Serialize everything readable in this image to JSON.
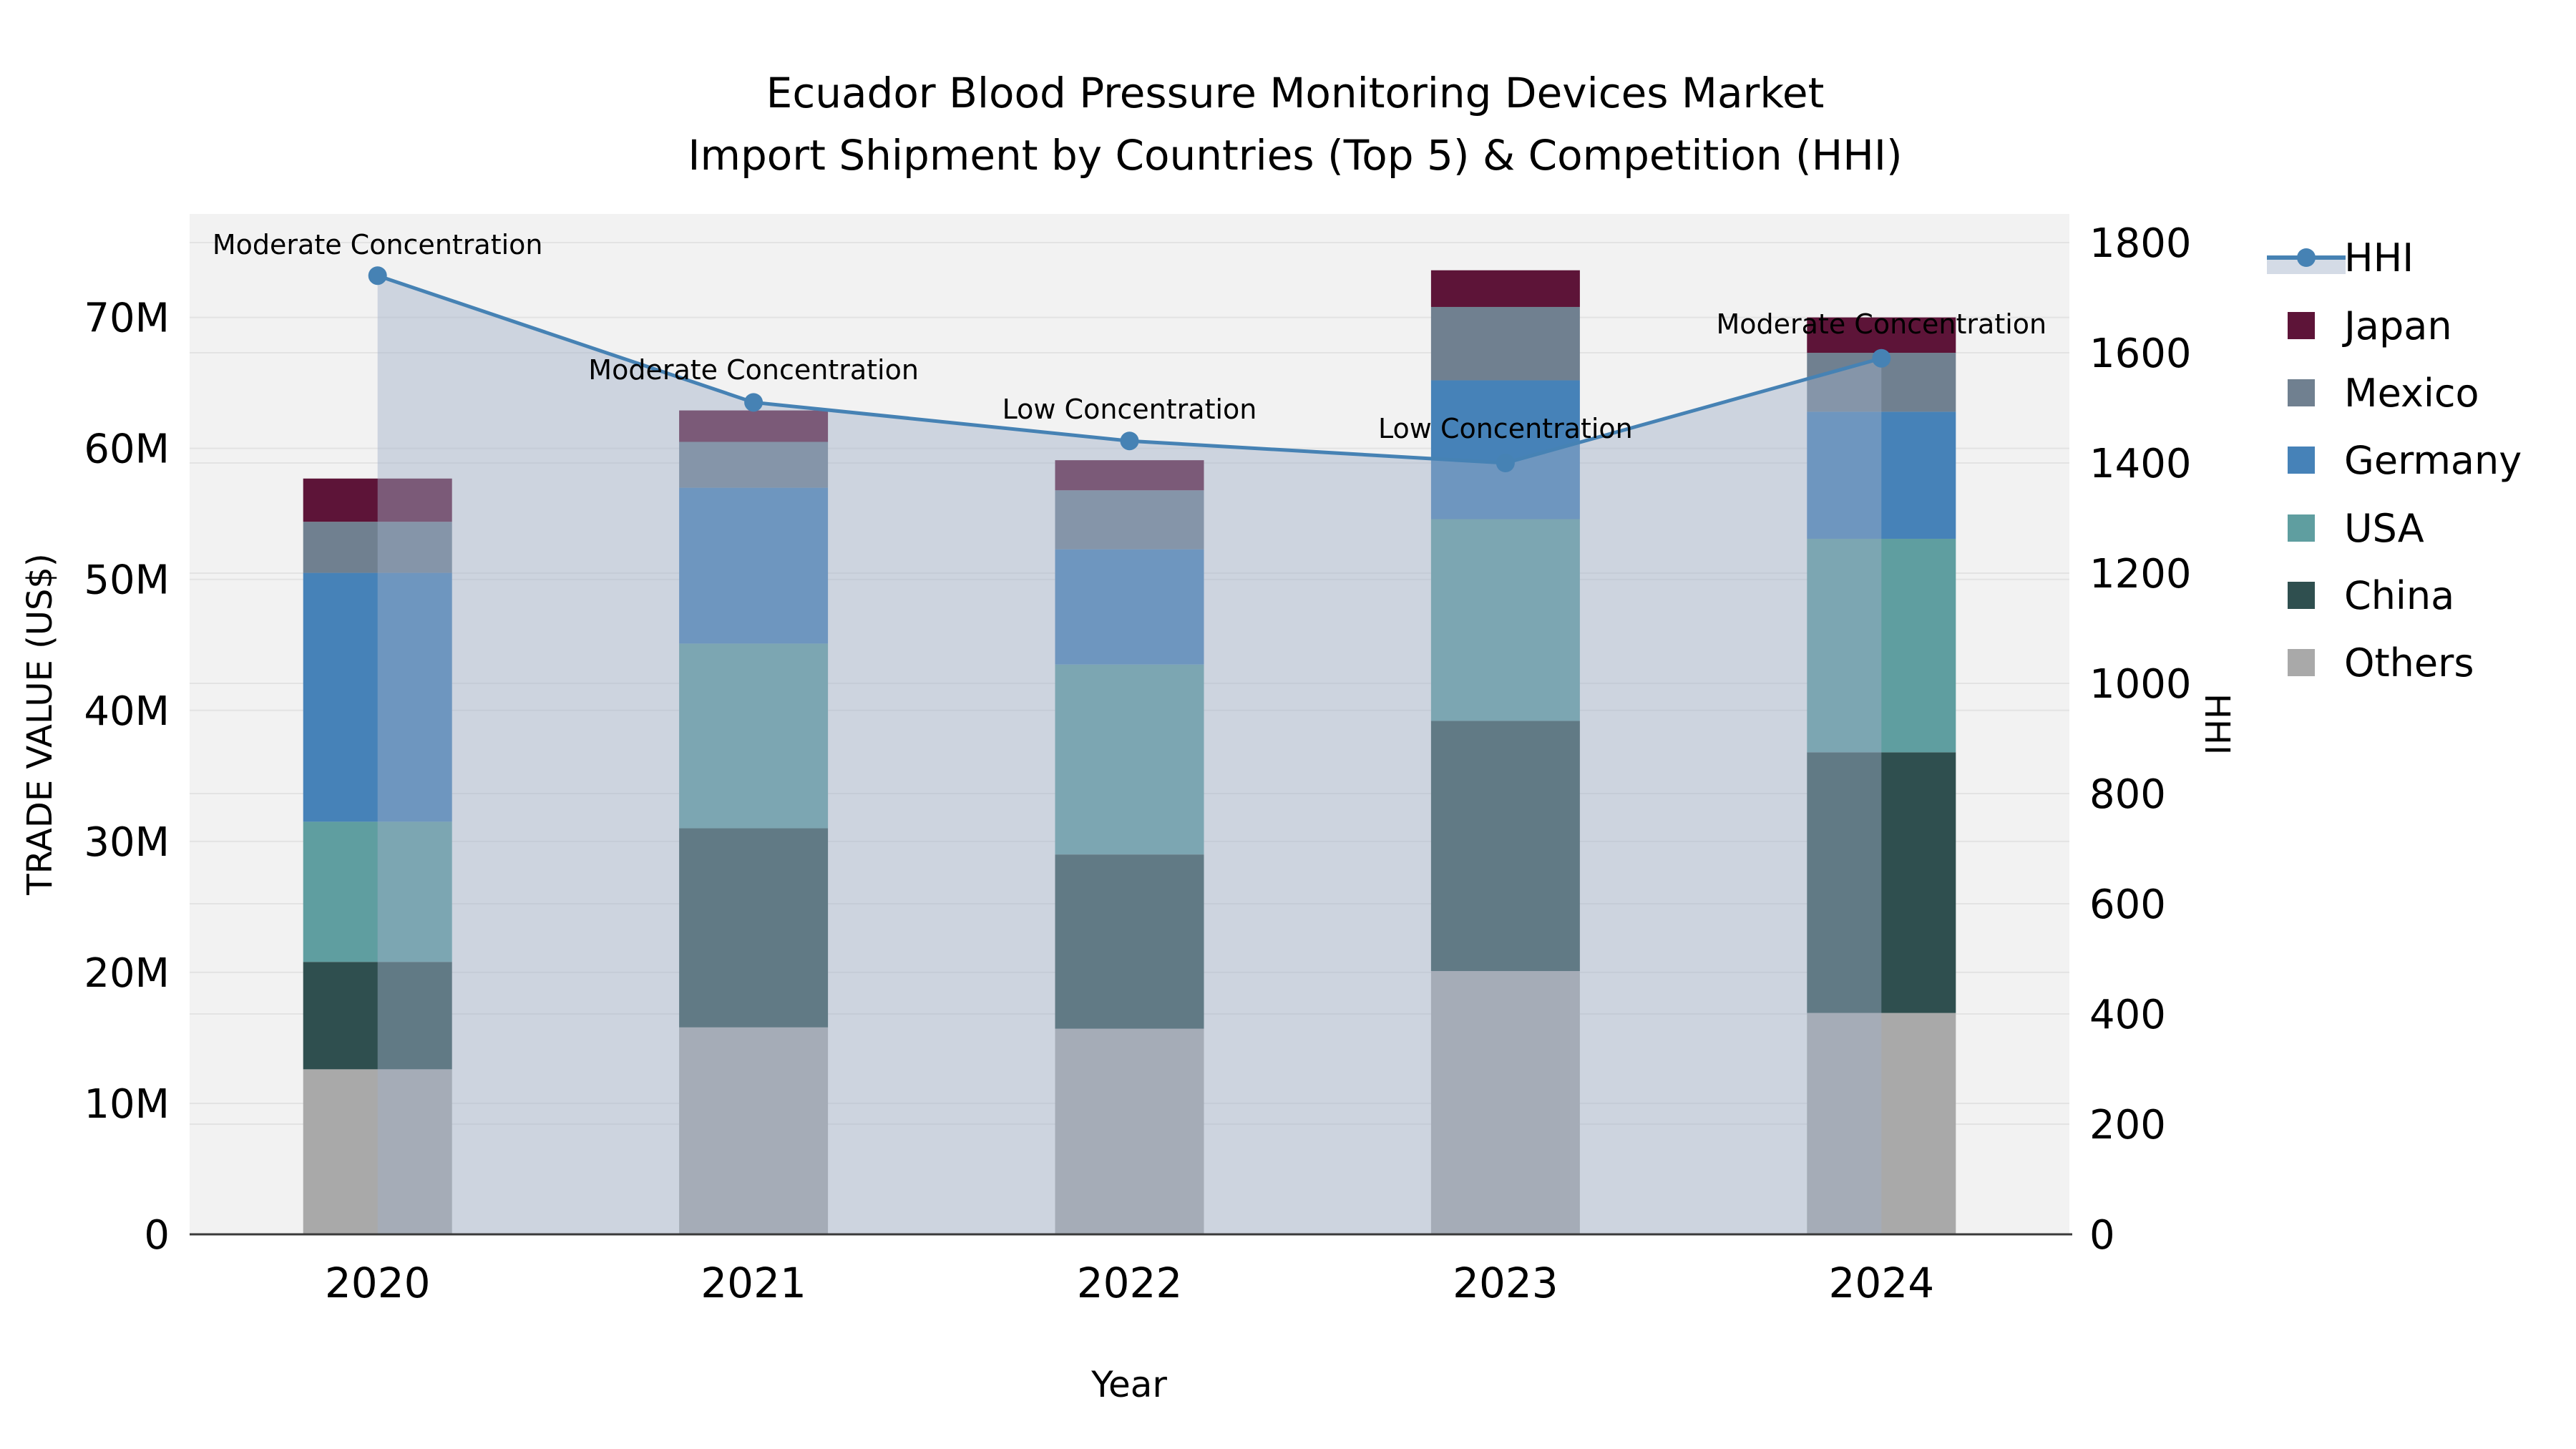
{
  "title": {
    "line1": "Ecuador Blood Pressure Monitoring Devices Market",
    "line2": "Import Shipment by Countries (Top 5) & Competition (HHI)"
  },
  "colors": {
    "figure_background": "#ffffff",
    "plot_background": "#f2f2f2",
    "gridline": "#e3e3e3",
    "axis_line": "#3a3a3a",
    "text": "#000000"
  },
  "chart_data": {
    "type": "stacked-bar+line",
    "title_line1": "Ecuador Blood Pressure Monitoring Devices Market",
    "title_line2": "Import Shipment by Countries (Top 5) & Competition (HHI)",
    "x_label": "Year",
    "categories": [
      "2020",
      "2021",
      "2022",
      "2023",
      "2024"
    ],
    "series": [
      {
        "name": "Others",
        "color": "#a9a9a9",
        "values": [
          12.6,
          15.8,
          15.7,
          20.1,
          16.9
        ]
      },
      {
        "name": "China",
        "color": "#2f4f4f",
        "values": [
          8.2,
          15.2,
          13.3,
          19.1,
          19.9
        ]
      },
      {
        "name": "USA",
        "color": "#5f9ea0",
        "values": [
          10.7,
          14.1,
          14.5,
          15.4,
          16.3
        ]
      },
      {
        "name": "Germany",
        "color": "#4682b8",
        "values": [
          19.0,
          11.9,
          8.8,
          10.6,
          9.7
        ]
      },
      {
        "name": "Mexico",
        "color": "#708090",
        "values": [
          3.9,
          3.5,
          4.5,
          5.6,
          4.5
        ]
      },
      {
        "name": "Japan",
        "color": "#5d1438",
        "values": [
          3.3,
          2.4,
          2.3,
          2.8,
          2.7
        ]
      }
    ],
    "bar_totals_musd": [
      57.7,
      62.9,
      59.1,
      73.6,
      70.0
    ],
    "line": {
      "name": "HHI",
      "axis": "right",
      "color": "#4682b4",
      "area_color": "rgba(160,175,200,0.45)",
      "values": [
        1740,
        1510,
        1440,
        1400,
        1590
      ]
    },
    "annotations": [
      {
        "category": "2020",
        "text": "Moderate Concentration",
        "label_y": 355
      },
      {
        "category": "2021",
        "text": "Moderate Concentration",
        "label_y": 530
      },
      {
        "category": "2022",
        "text": "Low Concentration",
        "label_y": 585
      },
      {
        "category": "2023",
        "text": "Low Concentration",
        "label_y": 612
      },
      {
        "category": "2024",
        "text": "Moderate Concentration",
        "label_y": 466
      }
    ],
    "y_left": {
      "label": "TRADE VALUE (US$)",
      "ticks": [
        "0",
        "10M",
        "20M",
        "30M",
        "40M",
        "50M",
        "60M",
        "70M"
      ],
      "tick_values": [
        0,
        10,
        20,
        30,
        40,
        50,
        60,
        70
      ],
      "range": [
        0,
        77.9
      ],
      "unit": "million US$"
    },
    "y_right": {
      "label": "HHI",
      "ticks": [
        "0",
        "200",
        "400",
        "600",
        "800",
        "1000",
        "1200",
        "1400",
        "1600",
        "1800"
      ],
      "tick_values": [
        0,
        200,
        400,
        600,
        800,
        1000,
        1200,
        1400,
        1600,
        1800
      ],
      "range": [
        0,
        1852
      ]
    },
    "legend": {
      "position": "right",
      "items": [
        "HHI",
        "Japan",
        "Mexico",
        "Germany",
        "USA",
        "China",
        "Others"
      ]
    },
    "grid": true
  }
}
